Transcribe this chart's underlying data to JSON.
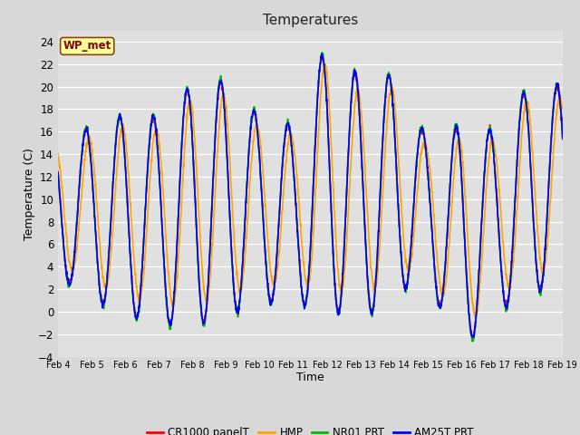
{
  "title": "Temperatures",
  "xlabel": "Time",
  "ylabel": "Temperature (C)",
  "ylim": [
    -4,
    25
  ],
  "yticks": [
    -4,
    -2,
    0,
    2,
    4,
    6,
    8,
    10,
    12,
    14,
    16,
    18,
    20,
    22,
    24
  ],
  "xlim": [
    0,
    15
  ],
  "xtick_labels": [
    "Feb 4",
    "Feb 5",
    "Feb 6",
    "Feb 7",
    "Feb 8",
    "Feb 9",
    "Feb 10",
    "Feb 11",
    "Feb 12",
    "Feb 13",
    "Feb 14",
    "Feb 15",
    "Feb 16",
    "Feb 17",
    "Feb 18",
    "Feb 19"
  ],
  "watermark": "WP_met",
  "legend_entries": [
    "CR1000 panelT",
    "HMP",
    "NR01 PRT",
    "AM25T PRT"
  ],
  "legend_colors": [
    "#ff0000",
    "#ffa500",
    "#00bb00",
    "#0000ff"
  ],
  "series_colors": [
    "#ff0000",
    "#ffa500",
    "#00bb00",
    "#0000ff"
  ],
  "line_width": 1.2,
  "fig_width": 6.4,
  "fig_height": 4.8,
  "dpi": 100
}
